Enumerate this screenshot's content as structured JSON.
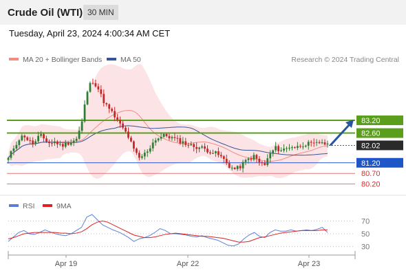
{
  "header": {
    "title": "Crude Oil (WTI)",
    "timeframe": "30 MIN"
  },
  "datetime": "Tuesday, April 23, 2024 4:00:34 AM CET",
  "legend": {
    "ma20": "MA 20 + Bollinger Bands",
    "ma50": "MA 50",
    "copyright": "Research © 2024 Trading Central"
  },
  "rsi_legend": {
    "rsi": "RSI",
    "ma": "9MA"
  },
  "colors": {
    "up": "#2e7d32",
    "down": "#c62828",
    "resistance": "#5a9e1c",
    "support": "#1e56c8",
    "pivot": "#2a2a2a",
    "target": "#d32f2f",
    "band": "#fadadd",
    "ma20": "#f28b82",
    "ma50": "#34549c",
    "rsi": "#5b7fd6",
    "rsi_ma": "#e02020",
    "arrow": "#2855a0"
  },
  "chart_data": [
    {
      "type": "candlestick",
      "title": "Crude Oil (WTI)",
      "timeframe": "30 MIN",
      "x_ticks": [
        "Apr 19",
        "Apr 22",
        "Apr 23"
      ],
      "ylim": [
        79.8,
        85.5
      ],
      "price_levels": [
        {
          "value": 83.2,
          "label": "83.20",
          "kind": "resistance"
        },
        {
          "value": 82.6,
          "label": "82.60",
          "kind": "resistance"
        },
        {
          "value": 82.02,
          "label": "82.02",
          "kind": "pivot"
        },
        {
          "value": 81.2,
          "label": "81.20",
          "kind": "support"
        },
        {
          "value": 80.7,
          "label": "80.70",
          "kind": "target"
        },
        {
          "value": 80.2,
          "label": "80.20",
          "kind": "target"
        }
      ],
      "series": [
        {
          "name": "MA 20 + Bollinger Bands",
          "kind": "band"
        },
        {
          "name": "MA 50",
          "kind": "line"
        }
      ],
      "close_path": [
        81.4,
        81.9,
        82.3,
        82.5,
        82.2,
        82.1,
        82.5,
        82.3,
        82.1,
        82.2,
        82.0,
        82.1,
        82.2,
        82.3,
        83.0,
        84.5,
        85.1,
        84.8,
        84.2,
        83.8,
        83.5,
        83.1,
        82.8,
        82.4,
        81.8,
        81.4,
        81.6,
        81.9,
        82.3,
        82.4,
        82.5,
        82.4,
        82.3,
        82.2,
        82.1,
        82.0,
        81.95,
        81.9,
        81.8,
        81.7,
        81.6,
        81.4,
        81.1,
        80.9,
        80.95,
        81.2,
        81.4,
        81.5,
        81.2,
        81.1,
        81.6,
        81.9,
        81.8,
        81.85,
        82.0,
        81.9,
        82.05,
        82.1,
        82.05,
        82.1,
        82.2,
        82.0
      ],
      "forecast": {
        "from": 82.02,
        "to": 83.2
      }
    },
    {
      "type": "line",
      "title": "RSI",
      "ylim": [
        20,
        80
      ],
      "y_ticks": [
        "70",
        "50",
        "30"
      ],
      "series": [
        {
          "name": "RSI",
          "kind": "rsi",
          "values": [
            38,
            45,
            52,
            55,
            50,
            49,
            52,
            56,
            53,
            50,
            48,
            47,
            50,
            55,
            60,
            76,
            80,
            72,
            64,
            60,
            56,
            53,
            49,
            44,
            38,
            42,
            44,
            47,
            52,
            58,
            55,
            50,
            50,
            49,
            48,
            46,
            45,
            47,
            44,
            42,
            40,
            36,
            32,
            31,
            34,
            42,
            48,
            52,
            46,
            44,
            52,
            56,
            54,
            54,
            56,
            54,
            55,
            56,
            55,
            57,
            60,
            52
          ]
        },
        {
          "name": "9MA",
          "kind": "ma",
          "values": [
            42,
            44,
            47,
            50,
            51,
            52,
            52,
            52,
            52,
            52,
            51,
            51,
            50,
            51,
            53,
            58,
            64,
            68,
            70,
            68,
            64,
            60,
            56,
            52,
            48,
            46,
            44,
            44,
            45,
            47,
            49,
            50,
            51,
            50,
            49,
            48,
            47,
            46,
            46,
            45,
            44,
            43,
            41,
            39,
            37,
            37,
            38,
            41,
            44,
            45,
            47,
            49,
            51,
            52,
            53,
            54,
            55,
            55,
            55,
            55,
            56,
            56
          ]
        }
      ]
    }
  ]
}
